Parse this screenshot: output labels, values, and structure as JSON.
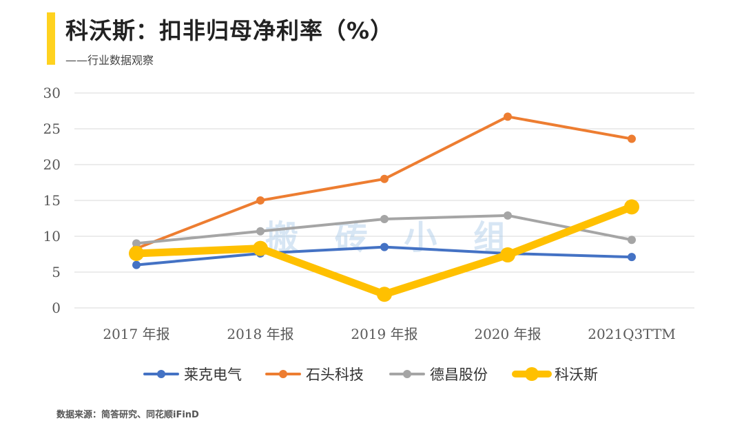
{
  "header": {
    "title": "科沃斯：扣非归母净利率（%）",
    "subtitle": "——行业数据观察"
  },
  "watermark": "搬 砖 小 组",
  "source": "数据来源：简答研究、同花顺iFinD",
  "chart_data": {
    "type": "line",
    "categories": [
      "2017 年报",
      "2018 年报",
      "2019 年报",
      "2020 年报",
      "2021Q3TTM"
    ],
    "ylim": [
      0,
      30
    ],
    "yticks": [
      0,
      5,
      10,
      15,
      20,
      25,
      30
    ],
    "grid": true,
    "legend_position": "bottom",
    "series": [
      {
        "name": "莱克电气",
        "color": "#4472c4",
        "values": [
          6.0,
          7.6,
          8.5,
          7.6,
          7.1
        ],
        "emphasis": false
      },
      {
        "name": "石头科技",
        "color": "#ed7d31",
        "values": [
          8.3,
          15.0,
          18.0,
          26.7,
          23.6
        ],
        "emphasis": false
      },
      {
        "name": "德昌股份",
        "color": "#a5a5a5",
        "values": [
          9.0,
          10.7,
          12.4,
          12.9,
          9.5
        ],
        "emphasis": false
      },
      {
        "name": "科沃斯",
        "color": "#ffc000",
        "values": [
          7.6,
          8.3,
          1.9,
          7.4,
          14.1
        ],
        "emphasis": true
      }
    ]
  }
}
